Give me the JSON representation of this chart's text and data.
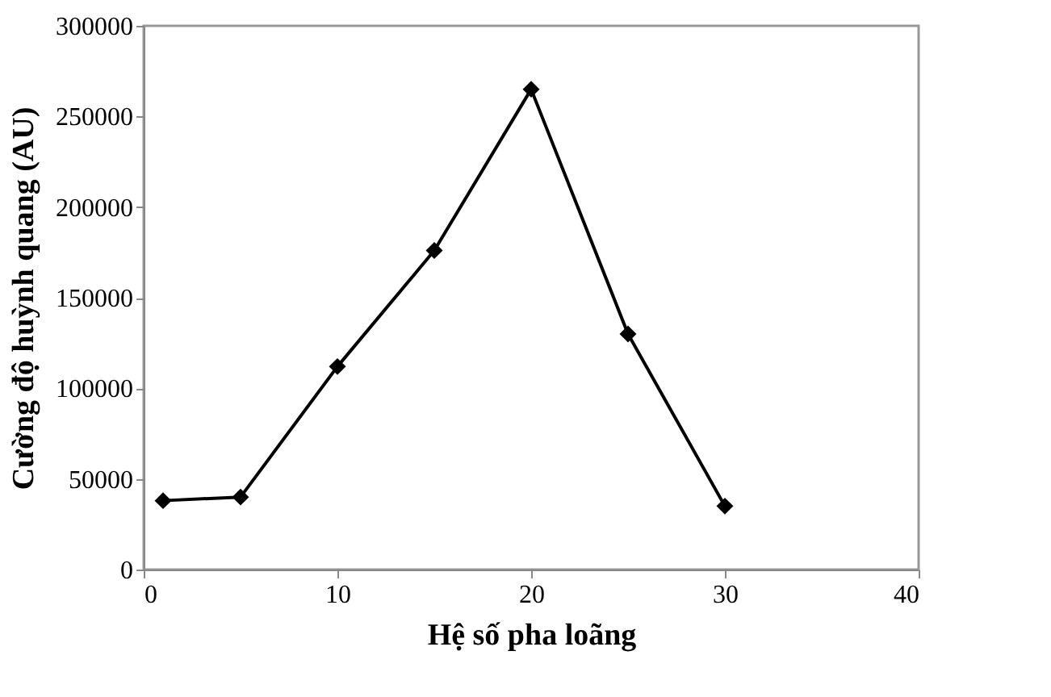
{
  "chart_data": {
    "type": "line",
    "xlabel": "Hệ số pha loãng",
    "ylabel": "Cường độ huỳnh quang (AU)",
    "x": [
      1,
      5,
      10,
      15,
      20,
      25,
      30
    ],
    "series": [
      {
        "color": "#000000",
        "values": [
          38000,
          40000,
          112000,
          176000,
          265000,
          130000,
          35000
        ]
      }
    ],
    "xlim": [
      0,
      40
    ],
    "xticks": [
      0,
      10,
      20,
      30,
      40
    ],
    "ylim": [
      0,
      300000
    ],
    "yticks": [
      0,
      50000,
      100000,
      150000,
      200000,
      250000,
      300000
    ],
    "marker": "diamond",
    "line_style": "solid"
  }
}
